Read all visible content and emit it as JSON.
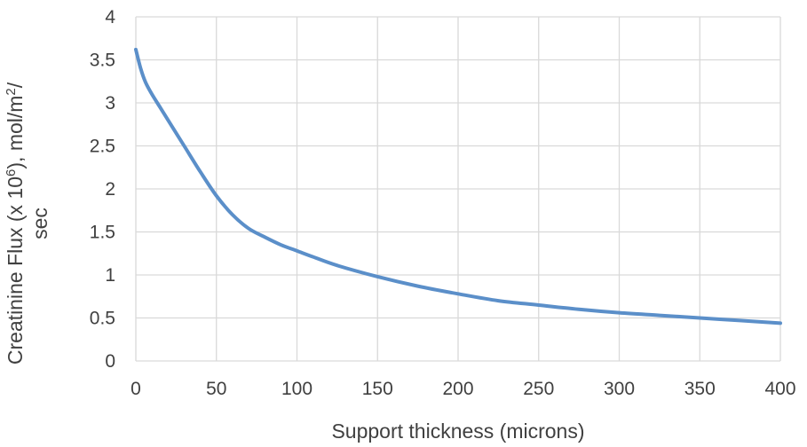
{
  "chart_data": {
    "type": "line",
    "title": "",
    "xlabel": "Support thickness (microns)",
    "ylabel": {
      "line1_prefix": "Creatinine Flux (x 10",
      "line1_sup1": "6",
      "line1_mid": "), mol/m",
      "line1_sup2": "2",
      "line1_suffix": "/",
      "line2": "sec"
    },
    "xlim": [
      0,
      400
    ],
    "ylim": [
      0,
      4
    ],
    "x_ticks": [
      0,
      50,
      100,
      150,
      200,
      250,
      300,
      350,
      400
    ],
    "y_ticks": [
      0,
      0.5,
      1,
      1.5,
      2,
      2.5,
      3,
      3.5,
      4
    ],
    "x_tick_labels": [
      "0",
      "50",
      "100",
      "150",
      "200",
      "250",
      "300",
      "350",
      "400"
    ],
    "y_tick_labels": [
      "0",
      "0.5",
      "1",
      "1.5",
      "2",
      "2.5",
      "3",
      "3.5",
      "4"
    ],
    "grid": true,
    "legend": "none",
    "series": [
      {
        "color": "#5B8FC9",
        "x": [
          0,
          3,
          6,
          10,
          15,
          20,
          30,
          40,
          50,
          60,
          70,
          80,
          90,
          100,
          110,
          125,
          150,
          175,
          200,
          225,
          250,
          275,
          300,
          325,
          350,
          375,
          400
        ],
        "y": [
          3.62,
          3.4,
          3.24,
          3.1,
          2.95,
          2.8,
          2.5,
          2.2,
          1.92,
          1.7,
          1.54,
          1.44,
          1.35,
          1.28,
          1.21,
          1.11,
          0.98,
          0.87,
          0.78,
          0.7,
          0.65,
          0.6,
          0.56,
          0.53,
          0.5,
          0.47,
          0.44
        ]
      }
    ]
  }
}
